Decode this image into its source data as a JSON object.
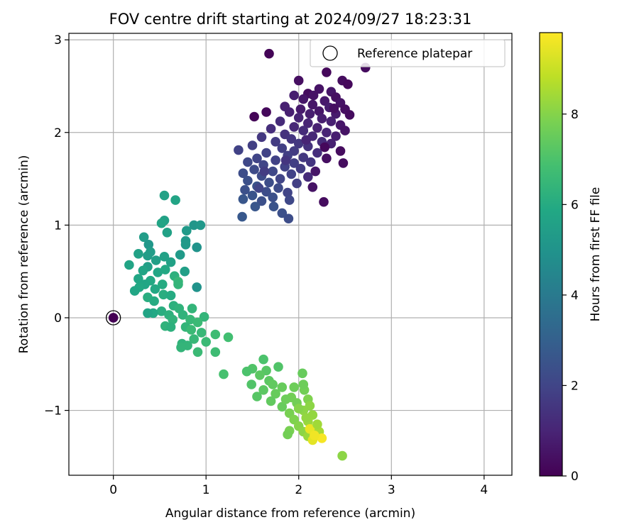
{
  "chart_data": {
    "type": "scatter",
    "title": "FOV centre drift starting at 2024/09/27 18:23:31",
    "xlabel": "Angular distance from reference (arcmin)",
    "ylabel": "Rotation from reference (arcmin)",
    "xlim": [
      -0.48,
      4.3
    ],
    "ylim": [
      -1.7,
      3.07
    ],
    "xticks": [
      0,
      1,
      2,
      3,
      4
    ],
    "xtick_labels": [
      "0",
      "1",
      "2",
      "3",
      "4"
    ],
    "yticks": [
      -1,
      0,
      1,
      2,
      3
    ],
    "ytick_labels": [
      "−1",
      "0",
      "1",
      "2",
      "3"
    ],
    "grid": true,
    "legend": {
      "placement": "top-right",
      "entries": [
        "Reference platepar"
      ]
    },
    "reference_point": {
      "name": "Reference platepar",
      "x": 0,
      "y": 0
    },
    "colorbar": {
      "label": "Hours from first FF file",
      "range": [
        0,
        9.8
      ],
      "ticks": [
        0,
        2,
        4,
        6,
        8
      ],
      "tick_labels": [
        "0",
        "2",
        "4",
        "6",
        "8"
      ],
      "colormap": "viridis",
      "stops": [
        "#440154",
        "#482475",
        "#414487",
        "#355f8d",
        "#2a788e",
        "#21918c",
        "#22a884",
        "#44bf70",
        "#7ad151",
        "#bddf26",
        "#fde725"
      ]
    },
    "points": [
      [
        1.68,
        2.85,
        0.1
      ],
      [
        2.72,
        2.7,
        0.3
      ],
      [
        2.3,
        2.65,
        0.2
      ],
      [
        2.0,
        2.56,
        0.4
      ],
      [
        2.47,
        2.56,
        0.3
      ],
      [
        2.53,
        2.52,
        0.2
      ],
      [
        2.22,
        2.47,
        0.5
      ],
      [
        2.35,
        2.44,
        0.6
      ],
      [
        2.1,
        2.42,
        0.3
      ],
      [
        1.95,
        2.4,
        0.8
      ],
      [
        2.4,
        2.38,
        0.4
      ],
      [
        2.05,
        2.36,
        0.6
      ],
      [
        2.28,
        2.34,
        0.7
      ],
      [
        2.45,
        2.32,
        0.5
      ],
      [
        2.15,
        2.3,
        0.6
      ],
      [
        1.85,
        2.28,
        0.9
      ],
      [
        2.33,
        2.27,
        0.8
      ],
      [
        2.02,
        2.25,
        0.7
      ],
      [
        2.22,
        2.23,
        0.6
      ],
      [
        2.5,
        2.25,
        0.4
      ],
      [
        1.9,
        2.22,
        0.9
      ],
      [
        2.12,
        2.2,
        0.8
      ],
      [
        2.4,
        2.2,
        0.7
      ],
      [
        1.65,
        2.22,
        0.2
      ],
      [
        2.55,
        2.19,
        0.3
      ],
      [
        1.52,
        2.17,
        0.1
      ],
      [
        2.0,
        2.16,
        1.0
      ],
      [
        2.25,
        2.15,
        0.8
      ],
      [
        1.8,
        2.12,
        1.2
      ],
      [
        2.35,
        2.12,
        0.9
      ],
      [
        2.1,
        2.1,
        1.0
      ],
      [
        2.45,
        2.08,
        0.6
      ],
      [
        1.95,
        2.06,
        1.1
      ],
      [
        2.2,
        2.05,
        0.9
      ],
      [
        1.7,
        2.04,
        1.3
      ],
      [
        2.05,
        2.02,
        1.2
      ],
      [
        2.3,
        2.0,
        1.0
      ],
      [
        2.5,
        2.02,
        0.5
      ],
      [
        1.85,
        1.98,
        1.4
      ],
      [
        2.15,
        1.96,
        1.1
      ],
      [
        1.6,
        1.95,
        1.6
      ],
      [
        2.4,
        1.96,
        0.8
      ],
      [
        1.92,
        1.93,
        1.5
      ],
      [
        2.25,
        1.9,
        1.2
      ],
      [
        1.75,
        1.9,
        1.7
      ],
      [
        2.0,
        1.88,
        1.6
      ],
      [
        2.35,
        1.88,
        0.9
      ],
      [
        1.5,
        1.86,
        1.8
      ],
      [
        2.1,
        1.85,
        1.4
      ],
      [
        2.28,
        1.84,
        0.2
      ],
      [
        1.82,
        1.83,
        1.8
      ],
      [
        2.45,
        1.8,
        0.3
      ],
      [
        1.95,
        1.8,
        1.7
      ],
      [
        1.65,
        1.78,
        1.9
      ],
      [
        2.2,
        1.78,
        1.3
      ],
      [
        1.35,
        1.81,
        1.9
      ],
      [
        1.88,
        1.75,
        1.8
      ],
      [
        2.05,
        1.73,
        1.6
      ],
      [
        1.55,
        1.72,
        2.0
      ],
      [
        2.3,
        1.72,
        0.4
      ],
      [
        1.75,
        1.7,
        1.9
      ],
      [
        2.13,
        1.68,
        1.5
      ],
      [
        1.45,
        1.68,
        2.1
      ],
      [
        1.95,
        1.67,
        1.8
      ],
      [
        2.48,
        1.67,
        0.3
      ],
      [
        1.62,
        1.65,
        2.0
      ],
      [
        1.85,
        1.63,
        1.9
      ],
      [
        2.02,
        1.61,
        1.7
      ],
      [
        1.52,
        1.6,
        2.2
      ],
      [
        1.72,
        1.58,
        2.1
      ],
      [
        2.18,
        1.58,
        0.6
      ],
      [
        1.4,
        1.56,
        2.3
      ],
      [
        1.92,
        1.55,
        1.9
      ],
      [
        1.6,
        1.53,
        2.2
      ],
      [
        2.1,
        1.52,
        1.2
      ],
      [
        1.8,
        1.5,
        2.0
      ],
      [
        1.45,
        1.48,
        2.4
      ],
      [
        1.68,
        1.46,
        2.3
      ],
      [
        1.98,
        1.45,
        1.8
      ],
      [
        1.55,
        1.42,
        2.5
      ],
      [
        1.78,
        1.4,
        2.2
      ],
      [
        2.15,
        1.41,
        0.5
      ],
      [
        1.42,
        1.38,
        2.4
      ],
      [
        1.65,
        1.36,
        2.3
      ],
      [
        1.88,
        1.35,
        2.0
      ],
      [
        1.5,
        1.32,
        2.5
      ],
      [
        1.72,
        1.3,
        2.4
      ],
      [
        1.4,
        1.28,
        2.6
      ],
      [
        1.6,
        1.26,
        2.4
      ],
      [
        1.9,
        1.27,
        2.1
      ],
      [
        2.27,
        1.25,
        0.3
      ],
      [
        1.53,
        1.2,
        2.6
      ],
      [
        1.73,
        1.2,
        2.5
      ],
      [
        1.82,
        1.13,
        2.4
      ],
      [
        1.39,
        1.09,
        2.7
      ],
      [
        1.89,
        1.07,
        2.3
      ],
      [
        1.57,
        1.4,
        2.0
      ],
      [
        1.63,
        1.58,
        1.7
      ],
      [
        1.86,
        1.7,
        1.5
      ],
      [
        2.08,
        1.92,
        1.0
      ],
      [
        2.38,
        2.26,
        0.4
      ],
      [
        2.16,
        2.4,
        0.5
      ],
      [
        0.55,
        1.32,
        5.6
      ],
      [
        0.67,
        1.27,
        5.7
      ],
      [
        0.55,
        1.05,
        5.6
      ],
      [
        0.52,
        1.02,
        5.7
      ],
      [
        0.87,
        1.0,
        5.1
      ],
      [
        0.94,
        1.0,
        5.2
      ],
      [
        0.79,
        0.94,
        5.3
      ],
      [
        0.58,
        0.92,
        5.6
      ],
      [
        0.33,
        0.87,
        5.4
      ],
      [
        0.78,
        0.83,
        5.2
      ],
      [
        0.78,
        0.79,
        5.3
      ],
      [
        0.38,
        0.79,
        5.2
      ],
      [
        0.9,
        0.76,
        5.0
      ],
      [
        0.4,
        0.71,
        5.4
      ],
      [
        0.27,
        0.69,
        5.6
      ],
      [
        0.37,
        0.67,
        5.4
      ],
      [
        0.55,
        0.66,
        5.6
      ],
      [
        0.72,
        0.68,
        5.3
      ],
      [
        0.46,
        0.62,
        5.5
      ],
      [
        0.62,
        0.6,
        5.6
      ],
      [
        0.17,
        0.57,
        5.7
      ],
      [
        0.37,
        0.55,
        5.5
      ],
      [
        0.32,
        0.51,
        5.7
      ],
      [
        0.48,
        0.49,
        5.8
      ],
      [
        0.56,
        0.52,
        5.9
      ],
      [
        0.77,
        0.5,
        5.5
      ],
      [
        0.66,
        0.45,
        6.2
      ],
      [
        0.27,
        0.42,
        5.8
      ],
      [
        0.4,
        0.4,
        5.9
      ],
      [
        0.7,
        0.39,
        6.5
      ],
      [
        0.34,
        0.36,
        5.8
      ],
      [
        0.53,
        0.36,
        6.0
      ],
      [
        0.28,
        0.33,
        5.9
      ],
      [
        0.45,
        0.31,
        5.9
      ],
      [
        0.23,
        0.29,
        5.8
      ],
      [
        0.54,
        0.25,
        6.1
      ],
      [
        0.7,
        0.36,
        6.4
      ],
      [
        0.9,
        0.33,
        5.0
      ],
      [
        0.62,
        0.24,
        6.0
      ],
      [
        0.37,
        0.22,
        6.1
      ],
      [
        0.44,
        0.18,
        6.0
      ],
      [
        0.65,
        0.13,
        6.2
      ],
      [
        0.71,
        0.1,
        6.3
      ],
      [
        0.85,
        0.1,
        6.4
      ],
      [
        0.52,
        0.07,
        6.1
      ],
      [
        0.43,
        0.05,
        5.9
      ],
      [
        0.37,
        0.05,
        5.7
      ],
      [
        0.6,
        0.03,
        6.2
      ],
      [
        0.75,
        0.03,
        6.3
      ],
      [
        0.98,
        0.01,
        6.4
      ],
      [
        0.64,
        -0.02,
        6.3
      ],
      [
        0.83,
        -0.02,
        6.5
      ],
      [
        0.91,
        -0.05,
        6.6
      ],
      [
        0.56,
        -0.09,
        6.3
      ],
      [
        0.62,
        -0.1,
        6.2
      ],
      [
        0.78,
        -0.1,
        6.4
      ],
      [
        0.84,
        -0.13,
        6.6
      ],
      [
        0.95,
        -0.16,
        6.5
      ],
      [
        1.1,
        -0.18,
        6.7
      ],
      [
        1.24,
        -0.21,
        6.8
      ],
      [
        0.87,
        -0.23,
        6.5
      ],
      [
        1.0,
        -0.26,
        6.6
      ],
      [
        0.74,
        -0.28,
        6.3
      ],
      [
        0.8,
        -0.3,
        6.4
      ],
      [
        0.73,
        -0.32,
        6.4
      ],
      [
        1.1,
        -0.37,
        6.7
      ],
      [
        0.91,
        -0.37,
        6.6
      ],
      [
        1.19,
        -0.61,
        6.9
      ],
      [
        1.62,
        -0.45,
        7.0
      ],
      [
        1.5,
        -0.55,
        7.1
      ],
      [
        1.78,
        -0.53,
        7.1
      ],
      [
        2.04,
        -0.6,
        7.5
      ],
      [
        1.65,
        -0.57,
        7.2
      ],
      [
        1.58,
        -0.62,
        7.3
      ],
      [
        1.44,
        -0.58,
        7.0
      ],
      [
        1.68,
        -0.68,
        7.3
      ],
      [
        1.72,
        -0.72,
        7.4
      ],
      [
        1.82,
        -0.75,
        7.5
      ],
      [
        1.49,
        -0.72,
        7.1
      ],
      [
        1.95,
        -0.75,
        7.6
      ],
      [
        2.06,
        -0.78,
        7.7
      ],
      [
        1.62,
        -0.78,
        7.3
      ],
      [
        1.75,
        -0.82,
        7.5
      ],
      [
        1.55,
        -0.85,
        7.2
      ],
      [
        1.92,
        -0.86,
        7.7
      ],
      [
        2.1,
        -0.88,
        7.9
      ],
      [
        1.7,
        -0.9,
        7.4
      ],
      [
        1.98,
        -0.92,
        7.7
      ],
      [
        2.12,
        -0.95,
        8.1
      ],
      [
        1.82,
        -0.96,
        7.5
      ],
      [
        2.05,
        -1.0,
        8.1
      ],
      [
        1.9,
        -1.03,
        7.8
      ],
      [
        2.15,
        -1.05,
        8.2
      ],
      [
        1.95,
        -1.1,
        7.9
      ],
      [
        2.1,
        -1.12,
        8.3
      ],
      [
        2.0,
        -1.17,
        8.0
      ],
      [
        2.13,
        -1.2,
        8.4
      ],
      [
        1.9,
        -1.22,
        7.8
      ],
      [
        2.05,
        -1.23,
        8.1
      ],
      [
        2.22,
        -1.23,
        8.5
      ],
      [
        1.88,
        -1.26,
        7.7
      ],
      [
        2.1,
        -1.28,
        8.3
      ],
      [
        2.25,
        -1.3,
        9.7
      ],
      [
        2.15,
        -1.32,
        9.4
      ],
      [
        2.12,
        -1.2,
        9.5
      ],
      [
        2.17,
        -1.27,
        9.6
      ],
      [
        2.47,
        -1.49,
        8.1
      ],
      [
        2.05,
        -0.72,
        7.6
      ],
      [
        2.0,
        -0.98,
        8.0
      ],
      [
        2.2,
        -1.15,
        8.4
      ],
      [
        1.86,
        -0.88,
        7.6
      ],
      [
        2.08,
        -1.08,
        8.2
      ]
    ]
  }
}
